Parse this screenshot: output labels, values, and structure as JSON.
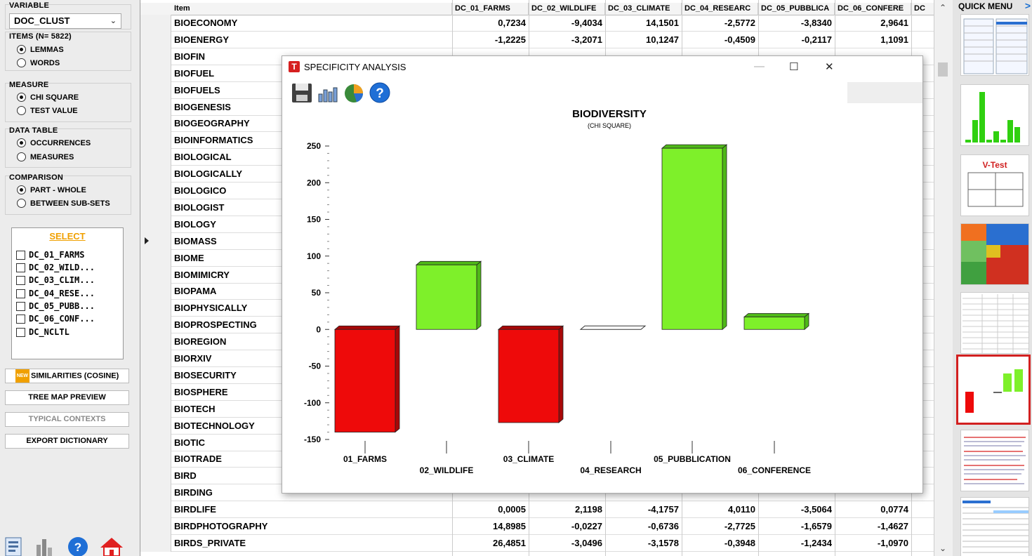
{
  "left_panel": {
    "variable_label": "VARIABLE",
    "variable_value": "DOC_CLUST",
    "items_label": "ITEMS (N= 5822)",
    "items_options": [
      "LEMMAS",
      "WORDS"
    ],
    "measure_label": "MEASURE",
    "measure_options": [
      "CHI SQUARE",
      "TEST VALUE"
    ],
    "datatable_label": "DATA TABLE",
    "datatable_options": [
      "OCCURRENCES",
      "MEASURES"
    ],
    "comparison_label": "COMPARISON",
    "comparison_options": [
      "PART - WHOLE",
      "BETWEEN SUB-SETS"
    ],
    "select_label": "SELECT",
    "select_items": [
      "DC_01_FARMS",
      "DC_02_WILD...",
      "DC_03_CLIM...",
      "DC_04_RESE...",
      "DC_05_PUBB...",
      "DC_06_CONF...",
      "DC_NCLTL"
    ],
    "new_badge": "NEW",
    "btn_similarities": "SIMILARITIES (COSINE)",
    "btn_treemap": "TREE MAP PREVIEW",
    "btn_typical": "TYPICAL CONTEXTS",
    "btn_export": "EXPORT DICTIONARY"
  },
  "table": {
    "headers": [
      "Item",
      "DC_01_FARMS",
      "DC_02_WILDLIFE",
      "DC_03_CLIMATE",
      "DC_04_RESEARC",
      "DC_05_PUBBLICA",
      "DC_06_CONFERE",
      "DC"
    ],
    "items": [
      "BIOECONOMY",
      "BIOENERGY",
      "BIOFIN",
      "BIOFUEL",
      "BIOFUELS",
      "BIOGENESIS",
      "BIOGEOGRAPHY",
      "BIOINFORMATICS",
      "BIOLOGICAL",
      "BIOLOGICALLY",
      "BIOLOGICO",
      "BIOLOGIST",
      "BIOLOGY",
      "BIOMASS",
      "BIOME",
      "BIOMIMICRY",
      "BIOPAMA",
      "BIOPHYSICALLY",
      "BIOPROSPECTING",
      "BIOREGION",
      "BIORXIV",
      "BIOSECURITY",
      "BIOSPHERE",
      "BIOTECH",
      "BIOTECHNOLOGY",
      "BIOTIC",
      "BIOTRADE",
      "BIRD",
      "BIRDING",
      "BIRDLIFE",
      "BIRDPHOTOGRAPHY",
      "BIRDS_PRIVATE"
    ],
    "visible_values": [
      {
        "row": 0,
        "vals": [
          "0,7234",
          "-9,4034",
          "14,1501",
          "-2,5772",
          "-3,8340",
          "2,9641"
        ]
      },
      {
        "row": 1,
        "vals": [
          "-1,2225",
          "-3,2071",
          "10,1247",
          "-0,4509",
          "-0,2117",
          "1,1091"
        ]
      },
      {
        "row": 29,
        "vals": [
          "0,0005",
          "2,1198",
          "-4,1757",
          "4,0110",
          "-3,5064",
          "0,0774"
        ]
      },
      {
        "row": 30,
        "vals": [
          "14,8985",
          "-0,0227",
          "-0,6736",
          "-2,7725",
          "-1,6579",
          "-1,4627"
        ]
      },
      {
        "row": 31,
        "vals": [
          "26,4851",
          "-3,0496",
          "-3,1578",
          "-0,3948",
          "-1,2434",
          "-1,0970"
        ]
      }
    ],
    "selected_row": 13
  },
  "quick_menu": {
    "title": "QUICK MENU",
    "arrow": ">",
    "vtest_label": "V-Test"
  },
  "dialog": {
    "title": "SPECIFICITY ANALYSIS",
    "logo": "T",
    "minimize": "—",
    "maximize": "☐",
    "close": "✕"
  },
  "chart_data": {
    "type": "bar",
    "title": "BIODIVERSITY",
    "subtitle": "(CHI SQUARE)",
    "categories": [
      "01_FARMS",
      "02_WILDLIFE",
      "03_CLIMATE",
      "04_RESEARCH",
      "05_PUBBLICATION",
      "06_CONFERENCE"
    ],
    "values": [
      -140,
      88,
      -127,
      0,
      247,
      17
    ],
    "ylim": [
      -150,
      250
    ],
    "yticks": [
      250,
      200,
      150,
      100,
      50,
      0,
      -50,
      -100,
      -150
    ],
    "positive_color": "#7ef02a",
    "negative_color": "#ee0a0a",
    "style": "3d"
  }
}
